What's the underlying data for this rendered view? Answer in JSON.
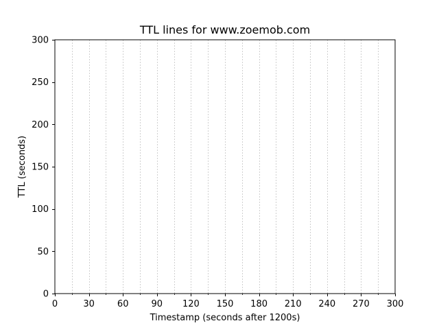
{
  "chart_data": {
    "type": "line",
    "title": "TTL lines for www.zoemob.com",
    "xlabel": "Timestamp (seconds after 1200s)",
    "ylabel": "TTL (seconds)",
    "xlim": [
      0,
      300
    ],
    "ylim": [
      0,
      300
    ],
    "x_major_ticks": [
      0,
      30,
      60,
      90,
      120,
      150,
      180,
      210,
      240,
      270,
      300
    ],
    "x_minor_ticks": [
      15,
      45,
      75,
      105,
      135,
      165,
      195,
      225,
      255,
      285
    ],
    "y_ticks": [
      0,
      50,
      100,
      150,
      200,
      250,
      300
    ],
    "vertical_gridlines_at": [
      15,
      30,
      45,
      60,
      75,
      90,
      105,
      120,
      135,
      150,
      165,
      180,
      195,
      210,
      225,
      240,
      255,
      270,
      285
    ],
    "grid_style": "dashed",
    "grid_color": "#b0b0b0",
    "series": []
  }
}
